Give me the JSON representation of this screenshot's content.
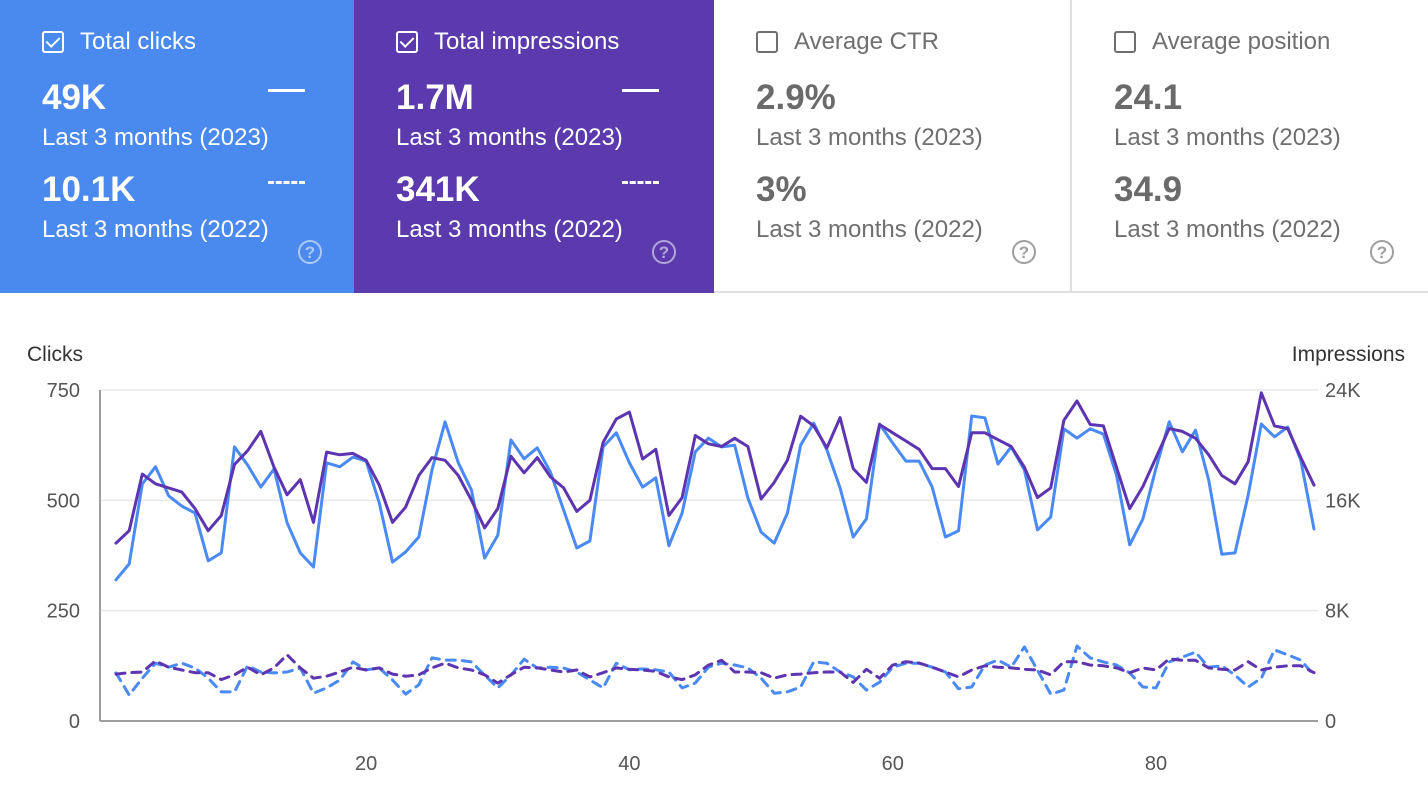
{
  "cards": [
    {
      "label": "Total clicks",
      "checked": true,
      "value_current": "49K",
      "period_current": "Last 3 months (2023)",
      "value_previous": "10.1K",
      "period_previous": "Last 3 months (2022)",
      "color": "#4a89ee"
    },
    {
      "label": "Total impressions",
      "checked": true,
      "value_current": "1.7M",
      "period_current": "Last 3 months (2023)",
      "value_previous": "341K",
      "period_previous": "Last 3 months (2022)",
      "color": "#5a3aac"
    },
    {
      "label": "Average CTR",
      "checked": false,
      "value_current": "2.9%",
      "period_current": "Last 3 months (2023)",
      "value_previous": "3%",
      "period_previous": "Last 3 months (2022)"
    },
    {
      "label": "Average position",
      "checked": false,
      "value_current": "24.1",
      "period_current": "Last 3 months (2023)",
      "value_previous": "34.9",
      "period_previous": "Last 3 months (2022)"
    }
  ],
  "help_glyph": "?",
  "chart_data": {
    "type": "line",
    "ylabel_left": "Clicks",
    "ylabel_right": "Impressions",
    "x_ticks": [
      20,
      40,
      60,
      80
    ],
    "xlim": [
      1,
      92
    ],
    "y_left_ticks": [
      {
        "v": 0,
        "label": "0"
      },
      {
        "v": 250,
        "label": "250"
      },
      {
        "v": 500,
        "label": "500"
      },
      {
        "v": 750,
        "label": "750"
      }
    ],
    "y_right_ticks": [
      {
        "v": 0,
        "label": "0"
      },
      {
        "v": 8000,
        "label": "8K"
      },
      {
        "v": 16000,
        "label": "16K"
      },
      {
        "v": 24000,
        "label": "24K"
      }
    ],
    "ylim_left": [
      0,
      750
    ],
    "ylim_right": [
      0,
      24000
    ],
    "grid": true,
    "series": [
      {
        "key": "clicks-2023",
        "axis": "left",
        "color": "#4a8af4",
        "dash": false,
        "values": [
          320,
          356,
          537,
          576,
          510,
          487,
          471,
          363,
          381,
          621,
          580,
          530,
          571,
          449,
          381,
          349,
          585,
          576,
          598,
          589,
          494,
          360,
          383,
          417,
          569,
          678,
          585,
          523,
          369,
          421,
          637,
          594,
          619,
          564,
          478,
          392,
          408,
          621,
          653,
          585,
          530,
          551,
          397,
          471,
          610,
          641,
          621,
          625,
          505,
          428,
          403,
          471,
          625,
          675,
          614,
          528,
          417,
          458,
          673,
          630,
          589,
          589,
          530,
          417,
          431,
          691,
          687,
          582,
          621,
          569,
          433,
          462,
          662,
          641,
          662,
          650,
          557,
          399,
          458,
          573,
          678,
          610,
          659,
          546,
          378,
          381,
          512,
          673,
          644,
          666,
          591,
          435
        ]
      },
      {
        "key": "impressions-2023",
        "axis": "right",
        "color": "#5e35b1",
        "dash": false,
        "values": [
          12900,
          13800,
          17900,
          17200,
          16900,
          16600,
          15400,
          13800,
          14900,
          18600,
          19600,
          21000,
          18400,
          16400,
          17500,
          14400,
          19500,
          19300,
          19400,
          18900,
          17100,
          14400,
          15500,
          17800,
          19100,
          18900,
          17800,
          16000,
          14000,
          15400,
          19200,
          18000,
          19100,
          17700,
          16900,
          15200,
          16000,
          20200,
          21900,
          22400,
          19000,
          19700,
          14900,
          16200,
          20700,
          20100,
          19900,
          20500,
          19900,
          16100,
          17300,
          18900,
          22100,
          21400,
          19800,
          22000,
          18300,
          17300,
          21500,
          20900,
          20300,
          19700,
          18300,
          18300,
          17000,
          20900,
          20900,
          20400,
          19900,
          18400,
          16200,
          16900,
          21800,
          23200,
          21500,
          21400,
          18400,
          15400,
          17000,
          19100,
          21200,
          21000,
          20500,
          19300,
          17800,
          17200,
          18800,
          23800,
          21400,
          21200,
          19100,
          17100
        ]
      },
      {
        "key": "clicks-2022",
        "axis": "left",
        "color": "#4a8af4",
        "dash": true,
        "values": [
          109,
          59,
          97,
          131,
          122,
          131,
          120,
          97,
          66,
          66,
          125,
          111,
          109,
          111,
          120,
          63,
          75,
          93,
          134,
          116,
          120,
          93,
          61,
          82,
          143,
          138,
          138,
          134,
          104,
          75,
          104,
          140,
          120,
          122,
          120,
          111,
          93,
          75,
          131,
          116,
          118,
          116,
          111,
          75,
          86,
          122,
          131,
          127,
          120,
          97,
          63,
          66,
          77,
          134,
          131,
          111,
          100,
          70,
          88,
          122,
          131,
          131,
          122,
          111,
          73,
          77,
          127,
          138,
          122,
          168,
          115,
          61,
          70,
          170,
          143,
          134,
          127,
          109,
          77,
          75,
          134,
          145,
          156,
          122,
          125,
          104,
          77,
          97,
          161,
          150,
          138,
          104
        ]
      },
      {
        "key": "impressions-2022",
        "axis": "right",
        "color": "#5e35b1",
        "dash": true,
        "values": [
          3400,
          3500,
          3550,
          4350,
          3900,
          3700,
          3500,
          3500,
          3000,
          3350,
          3900,
          3350,
          3850,
          4800,
          3850,
          3100,
          3250,
          3550,
          3900,
          3700,
          3850,
          3400,
          3250,
          3350,
          3850,
          4200,
          3850,
          3700,
          3350,
          2750,
          3350,
          3900,
          3850,
          3700,
          3550,
          3700,
          3200,
          3500,
          3850,
          3750,
          3700,
          3600,
          3200,
          3000,
          3350,
          4050,
          4400,
          3550,
          3550,
          3500,
          3100,
          3350,
          3400,
          3500,
          3550,
          3550,
          2800,
          3750,
          3100,
          4050,
          4300,
          4200,
          3900,
          3550,
          3200,
          3700,
          4000,
          3900,
          3850,
          3750,
          3700,
          3350,
          4300,
          4300,
          4050,
          4000,
          3850,
          3500,
          3850,
          3700,
          4500,
          4400,
          4400,
          3850,
          3750,
          3700,
          4300,
          3700,
          3900,
          4000,
          4000,
          3500
        ]
      }
    ]
  }
}
